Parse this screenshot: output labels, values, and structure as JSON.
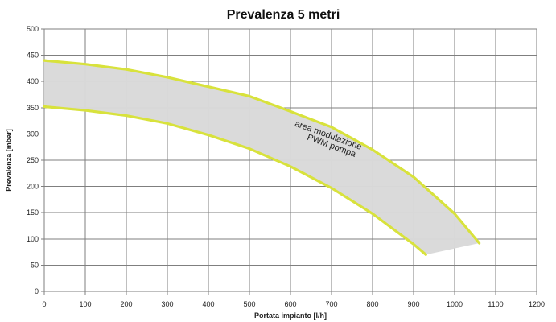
{
  "chart_data": {
    "type": "area",
    "title": "Prevalenza 5 metri",
    "xlabel": "Portata impianto [l/h]",
    "ylabel": "Prevalenza [mbar]",
    "xlim": [
      0,
      1200
    ],
    "ylim": [
      0,
      500
    ],
    "x_ticks": [
      "0",
      "100",
      "200",
      "300",
      "400",
      "500",
      "600",
      "700",
      "800",
      "900",
      "1000",
      "1100",
      "1200"
    ],
    "y_ticks": [
      "0",
      "50",
      "100",
      "150",
      "200",
      "250",
      "300",
      "350",
      "400",
      "450",
      "500"
    ],
    "grid": true,
    "series": [
      {
        "x": [
          0,
          100,
          200,
          300,
          400,
          500,
          600,
          700,
          800,
          900,
          1000,
          1060
        ],
        "y": [
          440,
          433,
          423,
          408,
          390,
          372,
          343,
          313,
          270,
          218,
          148,
          92
        ]
      },
      {
        "x": [
          0,
          100,
          200,
          300,
          400,
          500,
          600,
          700,
          800,
          900,
          930
        ],
        "y": [
          352,
          345,
          335,
          320,
          298,
          272,
          238,
          197,
          148,
          90,
          70
        ]
      }
    ],
    "annotation": {
      "lines": [
        "area modulazione",
        "PWM pompa"
      ],
      "x": 690,
      "y": 285
    },
    "colors": {
      "curve": "#d8e23c",
      "band_fill": "#d9d9d9",
      "grid": "#7f7f7f"
    }
  }
}
